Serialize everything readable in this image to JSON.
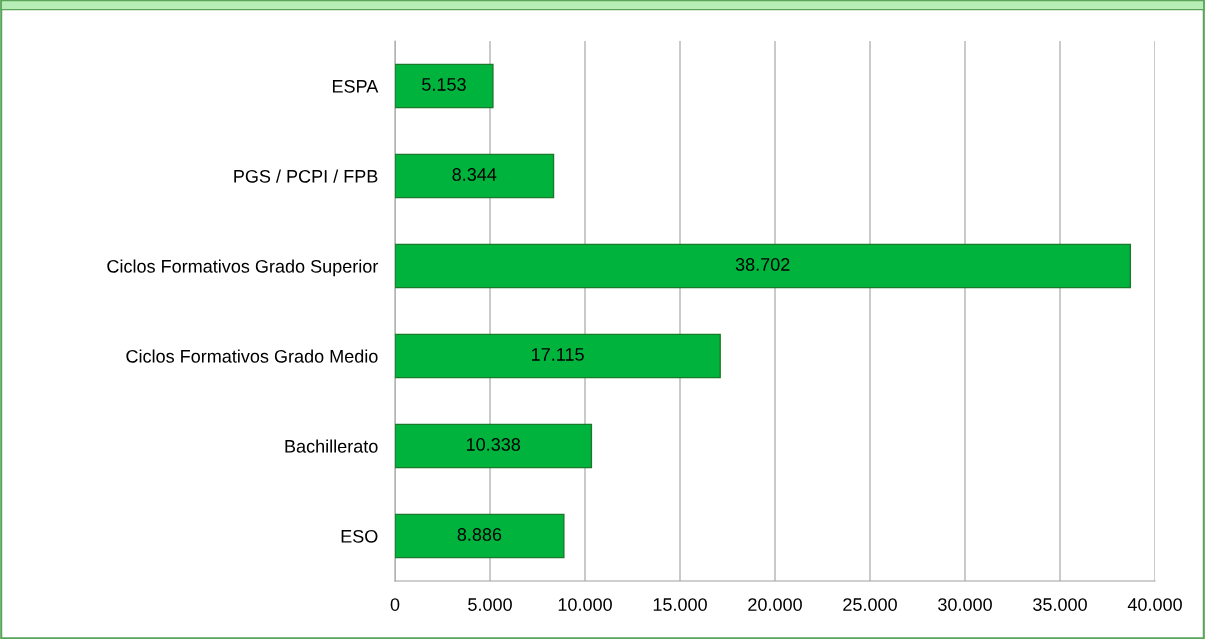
{
  "chart_data": {
    "type": "bar",
    "orientation": "horizontal",
    "categories": [
      "ESPA",
      "PGS / PCPI / FPB",
      "Ciclos Formativos Grado Superior",
      "Ciclos Formativos Grado Medio",
      "Bachillerato",
      "ESO"
    ],
    "values": [
      5153,
      8344,
      38702,
      17115,
      10338,
      8886
    ],
    "value_labels": [
      "5.153",
      "8.344",
      "38.702",
      "17.115",
      "10.338",
      "8.886"
    ],
    "color": "#00b33c",
    "xlim": [
      0,
      40000
    ],
    "xticks": [
      0,
      {
        "value": 5000,
        "label": "5.000"
      },
      {
        "value": 10000,
        "label": "10.000"
      },
      {
        "value": 15000,
        "label": "15.000"
      },
      {
        "value": 20000,
        "label": "20.000"
      },
      {
        "value": 25000,
        "label": "25.000"
      },
      {
        "value": 30000,
        "label": "30.000"
      },
      {
        "value": 35000,
        "label": "35.000"
      },
      {
        "value": 40000,
        "label": "40.000"
      }
    ],
    "grid": "x"
  }
}
